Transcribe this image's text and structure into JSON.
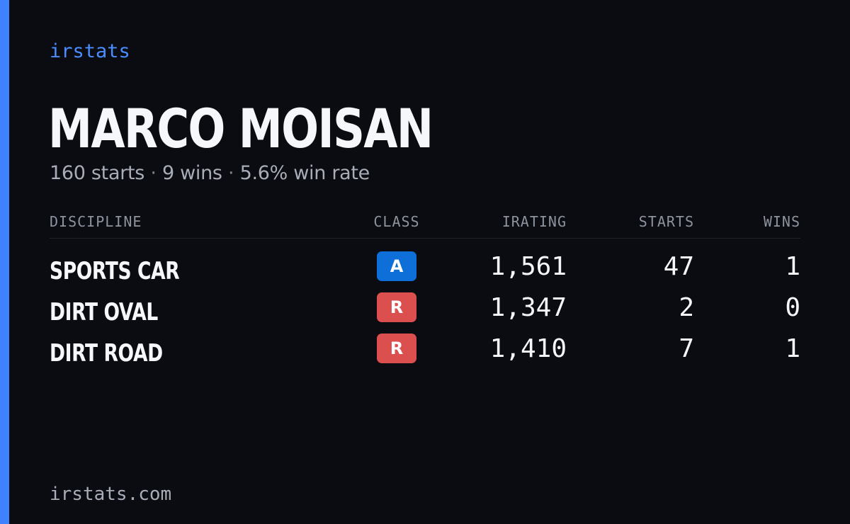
{
  "brand": "irstats",
  "player": {
    "name": "MARCO MOISAN",
    "starts_text": "160 starts",
    "wins_text": "9 wins",
    "win_rate_text": "5.6% win rate",
    "separator": "·"
  },
  "table": {
    "headers": {
      "discipline": "DISCIPLINE",
      "class": "CLASS",
      "irating": "IRATING",
      "starts": "STARTS",
      "wins": "WINS"
    },
    "rows": [
      {
        "discipline": "SPORTS CAR",
        "class": "A",
        "class_color": "#0f6fd9",
        "irating": "1,561",
        "starts": "47",
        "wins": "1"
      },
      {
        "discipline": "DIRT OVAL",
        "class": "R",
        "class_color": "#db4f4f",
        "irating": "1,347",
        "starts": "2",
        "wins": "0"
      },
      {
        "discipline": "DIRT ROAD",
        "class": "R",
        "class_color": "#db4f4f",
        "irating": "1,410",
        "starts": "7",
        "wins": "1"
      }
    ]
  },
  "footer": {
    "url": "irstats.com"
  },
  "colors": {
    "background": "#0a0c12",
    "accent": "#3f82ff",
    "brand_text": "#4a8dff",
    "muted_text": "#a8adb8"
  }
}
